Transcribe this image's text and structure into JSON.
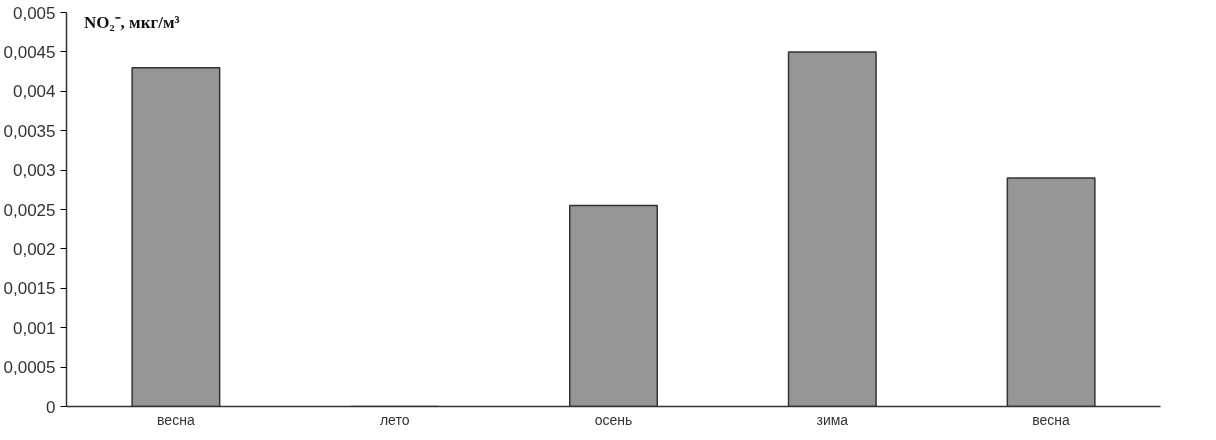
{
  "chart_data": {
    "type": "bar",
    "ylabel": "NO₂⁻, мкг/м³",
    "categories": [
      "весна",
      "лето",
      "осень",
      "зима",
      "весна"
    ],
    "values": [
      0.0043,
      0,
      0.00255,
      0.0045,
      0.0029
    ],
    "color": "#969696",
    "ylim": [
      0,
      0.005
    ],
    "yticks": [
      {
        "value": 0,
        "label": "0"
      },
      {
        "value": 0.0005,
        "label": "0,0005"
      },
      {
        "value": 0.001,
        "label": "0,001"
      },
      {
        "value": 0.0015,
        "label": "0,0015"
      },
      {
        "value": 0.002,
        "label": "0,002"
      },
      {
        "value": 0.0025,
        "label": "0,0025"
      },
      {
        "value": 0.003,
        "label": "0,003"
      },
      {
        "value": 0.0035,
        "label": "0,0035"
      },
      {
        "value": 0.004,
        "label": "0,004"
      },
      {
        "value": 0.0045,
        "label": "0,0045"
      },
      {
        "value": 0.005,
        "label": "0,005"
      }
    ],
    "grid": false
  }
}
